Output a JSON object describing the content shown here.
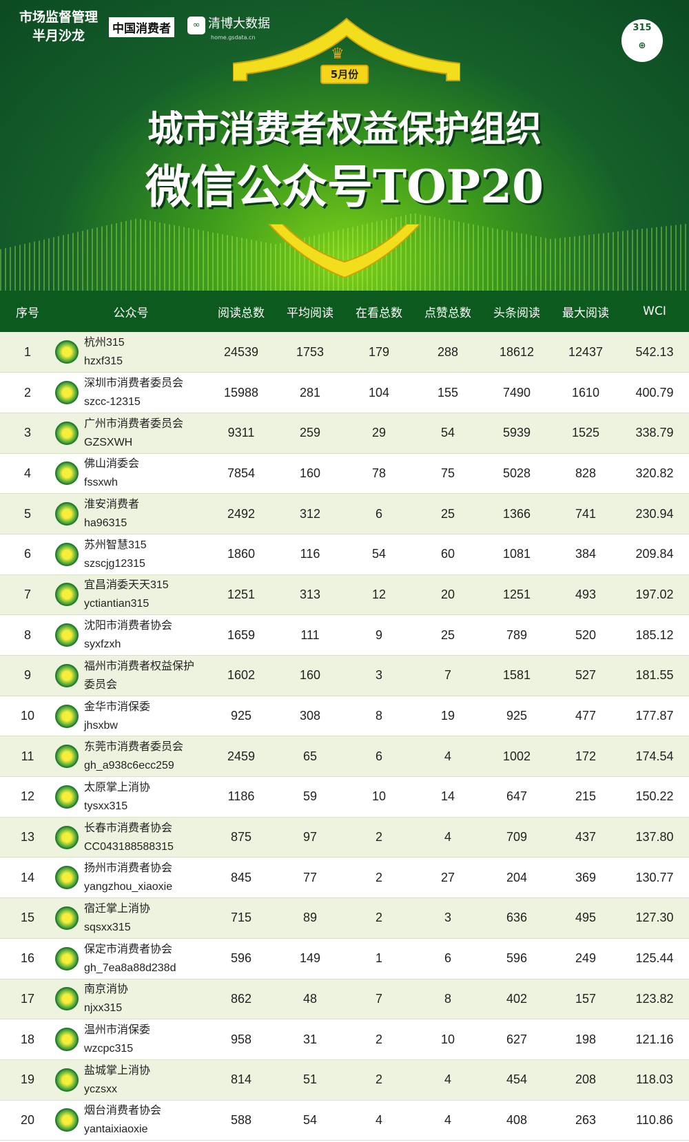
{
  "banner": {
    "logo1_line1": "市场监督管理",
    "logo1_line2": "半月沙龙",
    "logo2": "中国消费者",
    "logo3": "清博大数据",
    "logo3_sub": "home.gsdata.cn",
    "emblem": "315",
    "month": "5月份",
    "title1": "城市消费者权益保护组织",
    "title2": "微信公众号TOP20"
  },
  "colors": {
    "header": "#0d5a1f",
    "odd_row": "#eef3df",
    "accent_yellow": "#f5d51a"
  },
  "table": {
    "headers": [
      "序号",
      "公众号",
      "阅读总数",
      "平均阅读",
      "在看总数",
      "点赞总数",
      "头条阅读",
      "最大阅读",
      "WCI"
    ],
    "rows": [
      [
        "1",
        "杭州315",
        "hzxf315",
        "24539",
        "1753",
        "179",
        "288",
        "18612",
        "12437",
        "542.13"
      ],
      [
        "2",
        "深圳市消费者委员会",
        "szcc-12315",
        "15988",
        "281",
        "104",
        "155",
        "7490",
        "1610",
        "400.79"
      ],
      [
        "3",
        "广州市消费者委员会",
        "GZSXWH",
        "9311",
        "259",
        "29",
        "54",
        "5939",
        "1525",
        "338.79"
      ],
      [
        "4",
        "佛山消委会",
        "fssxwh",
        "7854",
        "160",
        "78",
        "75",
        "5028",
        "828",
        "320.82"
      ],
      [
        "5",
        "淮安消费者",
        "ha96315",
        "2492",
        "312",
        "6",
        "25",
        "1366",
        "741",
        "230.94"
      ],
      [
        "6",
        "苏州智慧315",
        "szscjg12315",
        "1860",
        "116",
        "54",
        "60",
        "1081",
        "384",
        "209.84"
      ],
      [
        "7",
        "宜昌消委天天315",
        "yctiantian315",
        "1251",
        "313",
        "12",
        "20",
        "1251",
        "493",
        "197.02"
      ],
      [
        "8",
        "沈阳市消费者协会",
        "syxfzxh",
        "1659",
        "111",
        "9",
        "25",
        "789",
        "520",
        "185.12"
      ],
      [
        "9",
        "福州市消费者权益保护",
        "委员会",
        "1602",
        "160",
        "3",
        "7",
        "1581",
        "527",
        "181.55"
      ],
      [
        "10",
        "金华市消保委",
        "jhsxbw",
        "925",
        "308",
        "8",
        "19",
        "925",
        "477",
        "177.87"
      ],
      [
        "11",
        "东莞市消费者委员会",
        "gh_a938c6ecc259",
        "2459",
        "65",
        "6",
        "4",
        "1002",
        "172",
        "174.54"
      ],
      [
        "12",
        "太原掌上消协",
        "tysxx315",
        "1186",
        "59",
        "10",
        "14",
        "647",
        "215",
        "150.22"
      ],
      [
        "13",
        "长春市消费者协会",
        "CC043188588315",
        "875",
        "97",
        "2",
        "4",
        "709",
        "437",
        "137.80"
      ],
      [
        "14",
        "扬州市消费者协会",
        "yangzhou_xiaoxie",
        "845",
        "77",
        "2",
        "27",
        "204",
        "369",
        "130.77"
      ],
      [
        "15",
        "宿迁掌上消协",
        "sqsxx315",
        "715",
        "89",
        "2",
        "3",
        "636",
        "495",
        "127.30"
      ],
      [
        "16",
        "保定市消费者协会",
        "gh_7ea8a88d238d",
        "596",
        "149",
        "1",
        "6",
        "596",
        "249",
        "125.44"
      ],
      [
        "17",
        "南京消协",
        "njxx315",
        "862",
        "48",
        "7",
        "8",
        "402",
        "157",
        "123.82"
      ],
      [
        "18",
        "温州市消保委",
        "wzcpc315",
        "958",
        "31",
        "2",
        "10",
        "627",
        "198",
        "121.16"
      ],
      [
        "19",
        "盐城掌上消协",
        "yczsxx",
        "814",
        "51",
        "2",
        "4",
        "454",
        "208",
        "118.03"
      ],
      [
        "20",
        "烟台消费者协会",
        "yantaixiaoxie",
        "588",
        "54",
        "4",
        "4",
        "408",
        "263",
        "110.86"
      ]
    ]
  }
}
